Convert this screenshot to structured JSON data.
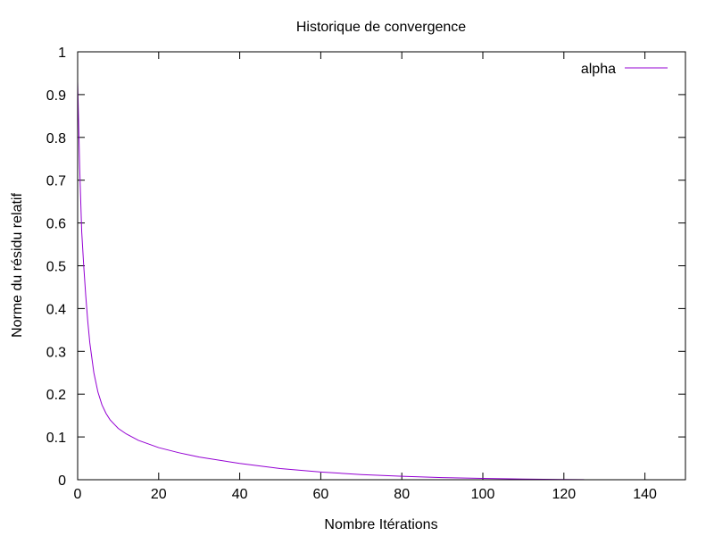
{
  "chart_data": {
    "type": "line",
    "title": "Historique de convergence",
    "xlabel": "Nombre Itérations",
    "ylabel": "Norme du résidu relatif",
    "xlim": [
      0,
      150
    ],
    "ylim": [
      0,
      1
    ],
    "xticks": [
      0,
      20,
      40,
      60,
      80,
      100,
      120,
      140
    ],
    "yticks": [
      0,
      0.1,
      0.2,
      0.3,
      0.4,
      0.5,
      0.6,
      0.7,
      0.8,
      0.9,
      1
    ],
    "xtick_labels": [
      "0",
      "20",
      "40",
      "60",
      "80",
      "100",
      "120",
      "140"
    ],
    "ytick_labels": [
      "0",
      "0.1",
      "0.2",
      "0.3",
      "0.4",
      "0.5",
      "0.6",
      "0.7",
      "0.8",
      "0.9",
      "1"
    ],
    "grid": false,
    "legend_position": "top-right",
    "series": [
      {
        "name": "alpha",
        "color": "#9400d3",
        "x": [
          0,
          0.5,
          1,
          1.5,
          2,
          2.5,
          3,
          4,
          5,
          6,
          7,
          8,
          10,
          12,
          15,
          20,
          25,
          30,
          40,
          50,
          60,
          70,
          80,
          90,
          100,
          110,
          120,
          125
        ],
        "y": [
          0.93,
          0.73,
          0.58,
          0.5,
          0.43,
          0.37,
          0.32,
          0.25,
          0.205,
          0.175,
          0.155,
          0.14,
          0.12,
          0.107,
          0.092,
          0.075,
          0.063,
          0.053,
          0.038,
          0.026,
          0.018,
          0.012,
          0.008,
          0.005,
          0.003,
          0.0015,
          0.0006,
          0.0002
        ]
      }
    ]
  }
}
